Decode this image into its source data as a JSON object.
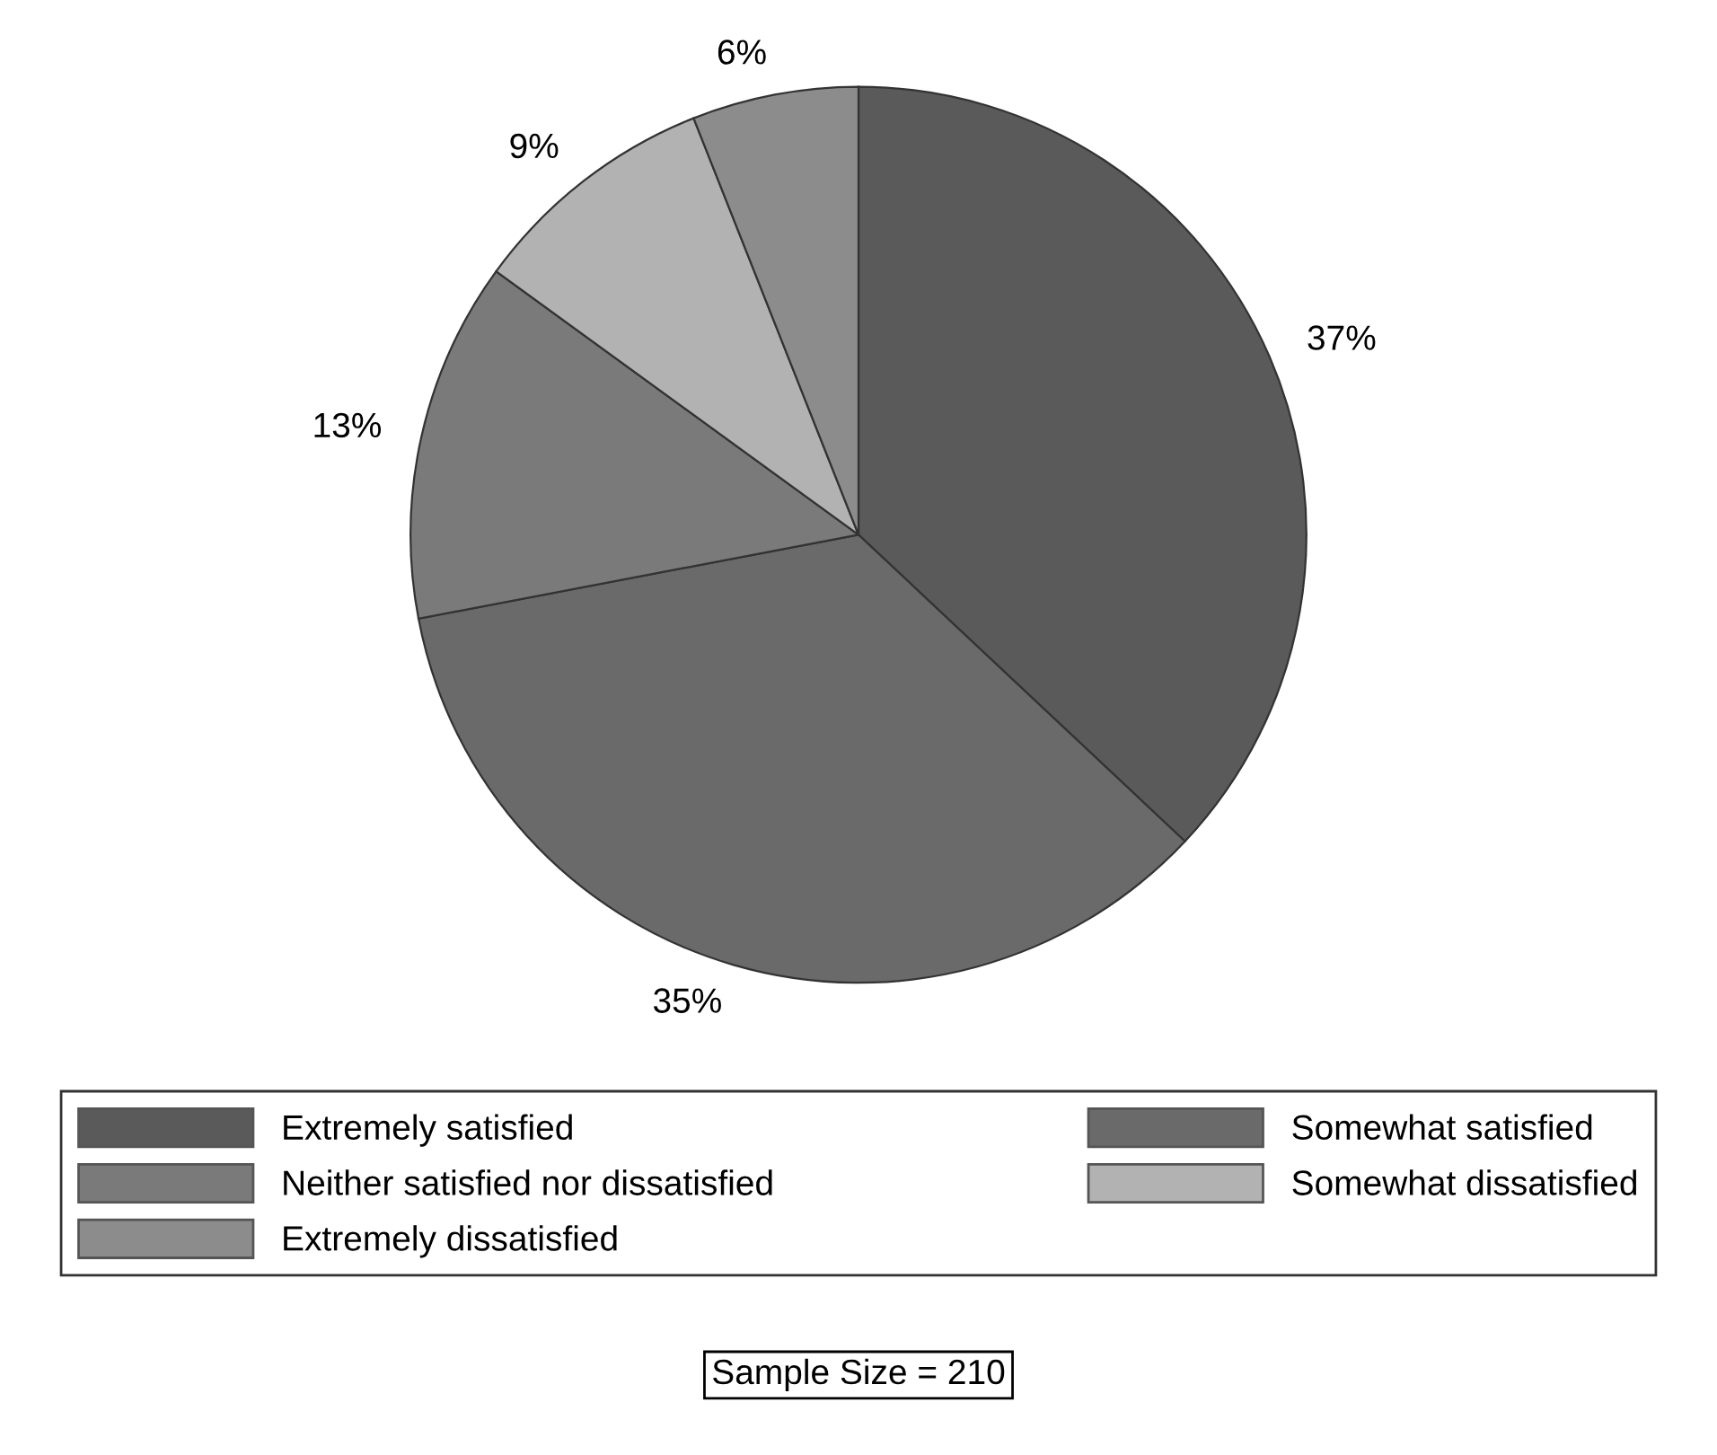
{
  "chart_data": {
    "type": "pie",
    "categories": [
      "Extremely satisfied",
      "Somewhat satisfied",
      "Neither satisfied nor dissatisfied",
      "Somewhat dissatisfied",
      "Extremely dissatisfied"
    ],
    "values": [
      37,
      35,
      13,
      9,
      6
    ],
    "value_labels": [
      "37%",
      "35%",
      "13%",
      "9%",
      "6%"
    ],
    "colors": [
      "#5a5a5a",
      "#6a6a6a",
      "#7a7a7a",
      "#b2b2b2",
      "#8c8c8c"
    ],
    "legend": "bottom",
    "annotations": [
      "Sample Size = 210"
    ]
  }
}
